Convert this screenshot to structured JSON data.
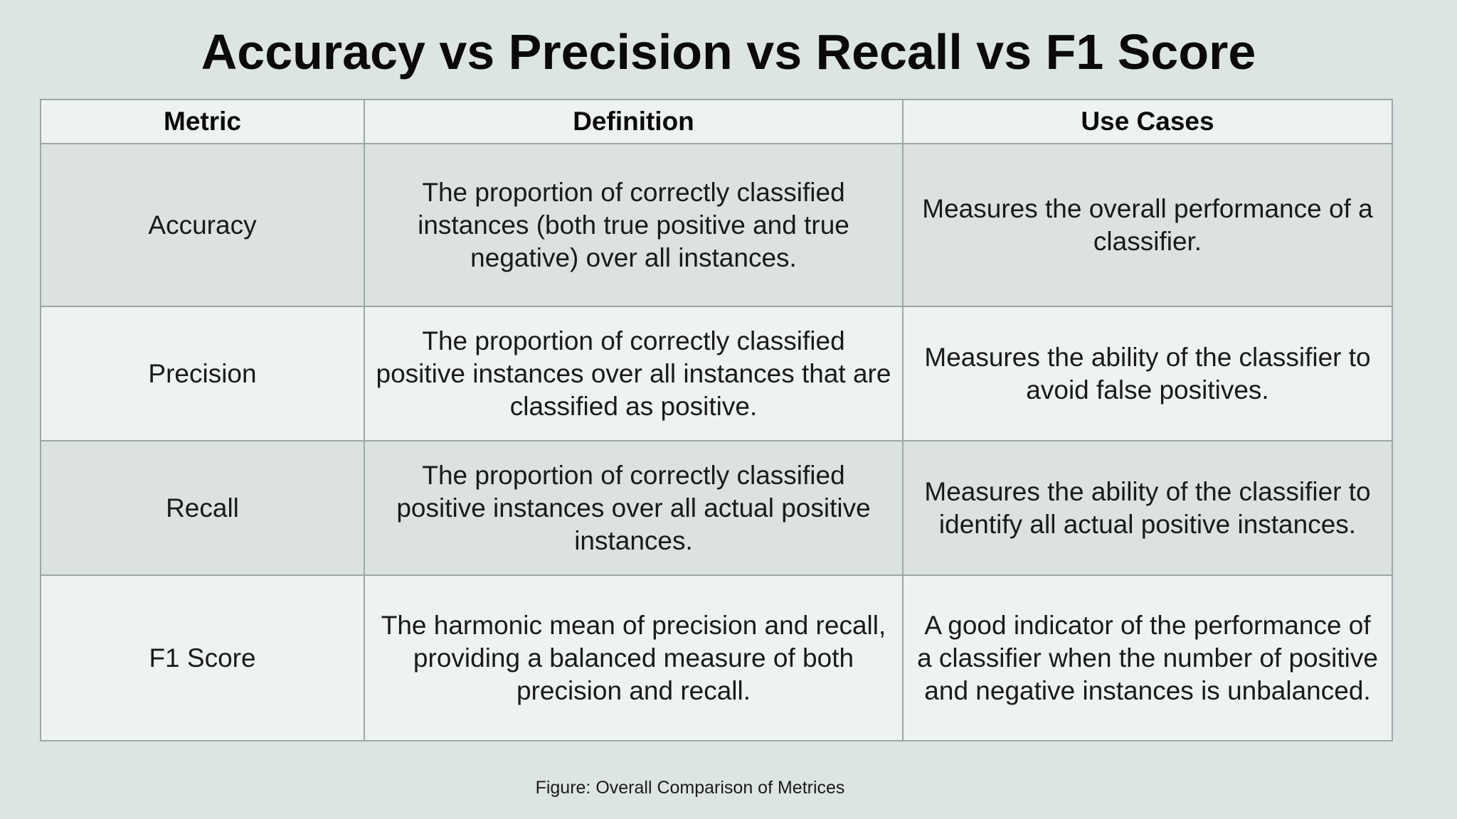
{
  "title": "Accuracy vs Precision vs Recall vs F1 Score",
  "table": {
    "headers": [
      "Metric",
      "Definition",
      "Use Cases"
    ],
    "rows": [
      {
        "metric": "Accuracy",
        "definition": "The proportion of correctly classified instances (both true positive and true negative) over all instances.",
        "use_cases": "Measures the overall performance of a classifier."
      },
      {
        "metric": "Precision",
        "definition": "The proportion of correctly classified positive instances over all instances that are classified as positive.",
        "use_cases": "Measures the ability of the classifier to avoid false positives."
      },
      {
        "metric": "Recall",
        "definition": "The proportion of correctly classified positive instances over all actual positive instances.",
        "use_cases": "Measures the ability of the classifier to identify all actual positive instances."
      },
      {
        "metric": "F1 Score",
        "definition": "The harmonic mean of precision and recall, providing a balanced measure of both precision and recall.",
        "use_cases": "A good indicator of the performance of a classifier when the number of positive and negative instances is unbalanced."
      }
    ]
  },
  "caption": "Figure: Overall Comparison of Metrices",
  "colors": {
    "background": "#dde5e4",
    "row_light": "#eef2f1",
    "row_dark": "#dbe2e1",
    "border": "#9aa8a6"
  }
}
